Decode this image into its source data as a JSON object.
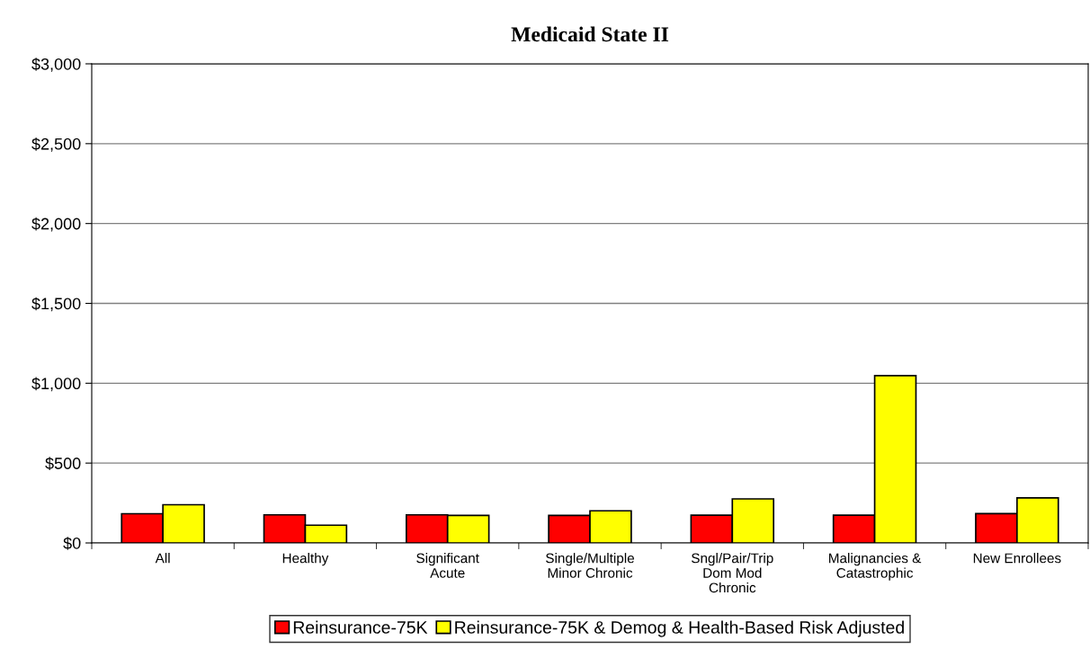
{
  "chart_data": {
    "type": "bar",
    "title": "Medicaid State II",
    "categories": [
      "All",
      "Healthy",
      "Significant\nAcute",
      "Single/Multiple\nMinor Chronic",
      "Sngl/Pair/Trip\nDom Mod\nChronic",
      "Malignancies &\nCatastrophic",
      "New Enrollees"
    ],
    "series": [
      {
        "name": "Reinsurance-75K",
        "color": "#ff0000",
        "values": [
          183,
          176,
          176,
          172,
          174,
          174,
          184
        ]
      },
      {
        "name": "Reinsurance-75K & Demog & Health-Based Risk Adjusted",
        "color": "#ffff00",
        "values": [
          239,
          111,
          172,
          201,
          276,
          1048,
          282
        ]
      }
    ],
    "ylim": [
      0,
      3000
    ],
    "yticks": [
      {
        "value": 0,
        "label": "$0"
      },
      {
        "value": 500,
        "label": "$500"
      },
      {
        "value": 1000,
        "label": "$1,000"
      },
      {
        "value": 1500,
        "label": "$1,500"
      },
      {
        "value": 2000,
        "label": "$2,000"
      },
      {
        "value": 2500,
        "label": "$2,500"
      },
      {
        "value": 3000,
        "label": "$3,000"
      }
    ],
    "grid": "y",
    "legend": "bottom"
  }
}
